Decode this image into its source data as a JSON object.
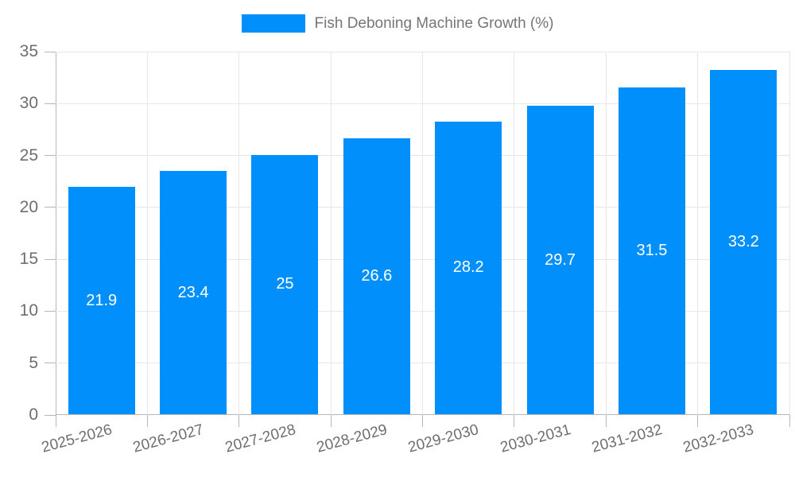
{
  "legend": {
    "label": "Fish Deboning Machine Growth (%)",
    "swatch_color": "#008FFB"
  },
  "colors": {
    "bar": "#008FFB",
    "grid": "#e7e7e7",
    "axis": "#b6b6b6",
    "axis_text": "#6e6e6e",
    "data_label": "#ffffff",
    "legend_text": "#757575"
  },
  "chart_data": {
    "type": "bar",
    "title": "Fish Deboning Machine Growth (%)",
    "categories": [
      "2025-2026",
      "2026-2027",
      "2027-2028",
      "2028-2029",
      "2029-2030",
      "2030-2031",
      "2031-2032",
      "2032-2033"
    ],
    "series": [
      {
        "name": "Fish Deboning Machine Growth (%)",
        "values": [
          21.9,
          23.4,
          25,
          26.6,
          28.2,
          29.7,
          31.5,
          33.2
        ]
      }
    ],
    "data_labels": [
      "21.9",
      "23.4",
      "25",
      "26.6",
      "28.2",
      "29.7",
      "31.5",
      "33.2"
    ],
    "xlabel": "",
    "ylabel": "",
    "ylim": [
      0,
      35
    ],
    "yticks": [
      0,
      5,
      10,
      15,
      20,
      25,
      30,
      35
    ],
    "grid": true,
    "legend_position": "top"
  }
}
